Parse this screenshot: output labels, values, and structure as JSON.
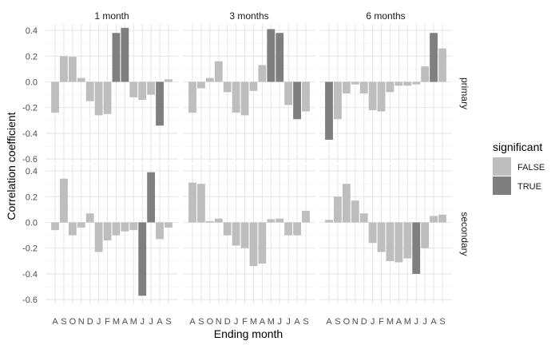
{
  "chart_data": {
    "type": "bar",
    "xlabel": "Ending month",
    "ylabel": "Correlation coefficient",
    "ylim": [
      -0.6,
      0.45
    ],
    "y_ticks": [
      -0.6,
      -0.4,
      -0.2,
      0.0,
      0.2,
      0.4
    ],
    "y_tick_labels": [
      "-0.6",
      "-0.4",
      "-0.2",
      "0.0",
      "0.2",
      "0.4"
    ],
    "categories": [
      "A",
      "S",
      "O",
      "N",
      "D",
      "J",
      "F",
      "M",
      "A",
      "M",
      "J",
      "J",
      "A",
      "S"
    ],
    "columns": [
      "1 month",
      "3 months",
      "6 months"
    ],
    "rows": [
      "primary",
      "secondary"
    ],
    "grid": true,
    "legend": {
      "title": "significant",
      "position": "right",
      "entries": [
        {
          "label": "FALSE",
          "color": "#bebebe"
        },
        {
          "label": "TRUE",
          "color": "#7f7f7f"
        }
      ]
    },
    "panels": [
      {
        "row": "primary",
        "column": "1 month",
        "values": [
          -0.24,
          0.2,
          0.195,
          0.03,
          -0.15,
          -0.26,
          -0.25,
          0.38,
          0.42,
          -0.12,
          -0.14,
          -0.1,
          -0.34,
          0.02
        ],
        "significant": [
          false,
          false,
          false,
          false,
          false,
          false,
          false,
          true,
          true,
          false,
          false,
          false,
          true,
          false
        ]
      },
      {
        "row": "primary",
        "column": "3 months",
        "values": [
          -0.24,
          -0.05,
          0.03,
          0.16,
          -0.08,
          -0.24,
          -0.26,
          -0.07,
          0.13,
          0.41,
          0.38,
          -0.18,
          -0.29,
          -0.23
        ],
        "significant": [
          false,
          false,
          false,
          false,
          false,
          false,
          false,
          false,
          false,
          true,
          true,
          false,
          true,
          false
        ]
      },
      {
        "row": "primary",
        "column": "6 months",
        "values": [
          -0.45,
          -0.29,
          -0.09,
          -0.02,
          -0.09,
          -0.22,
          -0.23,
          -0.08,
          -0.03,
          -0.03,
          -0.02,
          0.12,
          0.38,
          0.26
        ],
        "significant": [
          true,
          false,
          false,
          false,
          false,
          false,
          false,
          false,
          false,
          false,
          false,
          false,
          true,
          false
        ]
      },
      {
        "row": "secondary",
        "column": "1 month",
        "values": [
          -0.06,
          0.34,
          -0.1,
          -0.04,
          0.07,
          -0.23,
          -0.14,
          -0.1,
          -0.07,
          -0.06,
          -0.57,
          0.39,
          -0.13,
          -0.04
        ],
        "significant": [
          false,
          false,
          false,
          false,
          false,
          false,
          false,
          false,
          false,
          false,
          true,
          true,
          false,
          false
        ]
      },
      {
        "row": "secondary",
        "column": "3 months",
        "values": [
          0.31,
          0.3,
          0.01,
          0.03,
          -0.1,
          -0.18,
          -0.2,
          -0.34,
          -0.32,
          0.025,
          0.03,
          -0.1,
          -0.1,
          0.09
        ],
        "significant": [
          false,
          false,
          false,
          false,
          false,
          false,
          false,
          false,
          false,
          false,
          false,
          false,
          false,
          false
        ]
      },
      {
        "row": "secondary",
        "column": "6 months",
        "values": [
          0.02,
          0.2,
          0.3,
          0.17,
          0.07,
          -0.16,
          -0.23,
          -0.3,
          -0.31,
          -0.28,
          -0.4,
          -0.2,
          0.05,
          0.06
        ],
        "significant": [
          false,
          false,
          false,
          false,
          false,
          false,
          false,
          false,
          false,
          false,
          true,
          false,
          false,
          false
        ]
      }
    ]
  }
}
